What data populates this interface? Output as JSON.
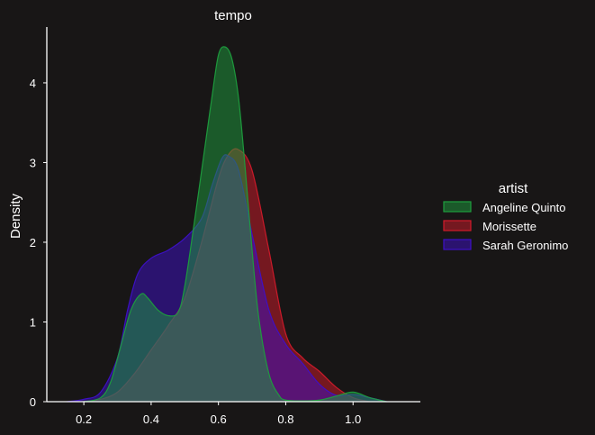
{
  "chart_data": {
    "type": "area",
    "title": "tempo",
    "xlabel": "",
    "ylabel": "Density",
    "xlim": [
      0.09,
      1.2
    ],
    "ylim": [
      0,
      4.7
    ],
    "x_ticks": [
      0.2,
      0.4,
      0.6,
      0.8,
      1.0
    ],
    "x_tick_labels": [
      "0.2",
      "0.4",
      "0.6",
      "0.8",
      "1.0"
    ],
    "y_ticks": [
      0,
      1,
      2,
      3,
      4
    ],
    "y_tick_labels": [
      "0",
      "1",
      "2",
      "3",
      "4"
    ],
    "grid": false,
    "legend": {
      "title": "artist",
      "placement": "right",
      "entries": [
        "Angeline Quinto",
        "Morissette",
        "Sarah Geronimo"
      ]
    },
    "series": [
      {
        "name": "Morissette",
        "color": "#d11a2a",
        "x": [
          0.2,
          0.25,
          0.3,
          0.35,
          0.4,
          0.45,
          0.5,
          0.55,
          0.6,
          0.63,
          0.66,
          0.7,
          0.75,
          0.8,
          0.85,
          0.9,
          0.95,
          1.0,
          1.05
        ],
        "y": [
          0.0,
          0.03,
          0.12,
          0.35,
          0.65,
          0.95,
          1.3,
          2.0,
          2.8,
          3.1,
          3.16,
          2.9,
          1.9,
          0.85,
          0.55,
          0.38,
          0.18,
          0.05,
          0.0
        ]
      },
      {
        "name": "Sarah Geronimo",
        "color": "#3d10c8",
        "x": [
          0.15,
          0.2,
          0.25,
          0.3,
          0.33,
          0.36,
          0.4,
          0.45,
          0.5,
          0.55,
          0.58,
          0.61,
          0.63,
          0.66,
          0.7,
          0.75,
          0.8,
          0.85,
          0.9,
          0.95,
          1.0,
          1.05,
          1.1
        ],
        "y": [
          0.0,
          0.03,
          0.12,
          0.55,
          1.15,
          1.6,
          1.8,
          1.9,
          2.05,
          2.3,
          2.7,
          3.05,
          3.08,
          2.9,
          2.1,
          1.15,
          0.72,
          0.48,
          0.22,
          0.08,
          0.09,
          0.05,
          0.0
        ]
      },
      {
        "name": "Angeline Quinto",
        "color": "#1e9e3e",
        "x": [
          0.2,
          0.25,
          0.28,
          0.31,
          0.34,
          0.37,
          0.39,
          0.42,
          0.45,
          0.48,
          0.5,
          0.53,
          0.56,
          0.58,
          0.6,
          0.62,
          0.64,
          0.66,
          0.68,
          0.7,
          0.72,
          0.75,
          0.78,
          0.8,
          0.85,
          0.9,
          0.95,
          1.0,
          1.05,
          1.1
        ],
        "y": [
          0.0,
          0.05,
          0.25,
          0.7,
          1.15,
          1.35,
          1.3,
          1.15,
          1.08,
          1.12,
          1.45,
          2.3,
          3.2,
          3.8,
          4.35,
          4.45,
          4.3,
          3.8,
          2.9,
          1.9,
          1.05,
          0.35,
          0.08,
          0.02,
          0.01,
          0.02,
          0.07,
          0.12,
          0.05,
          0.0
        ]
      }
    ]
  }
}
